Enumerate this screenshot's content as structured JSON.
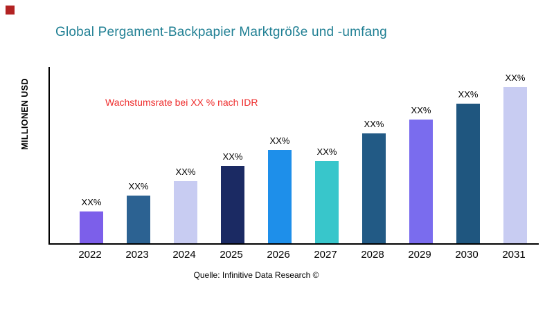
{
  "chart_data": {
    "type": "bar",
    "title": "Global Pergament-Backpapier Marktgröße und -umfang",
    "ylabel": "MILLIONEN USD",
    "xlabel": "",
    "annotation": "Wachstumsrate bei XX % nach IDR",
    "source": "Quelle: Infinitive Data Research ©",
    "categories": [
      "2022",
      "2023",
      "2024",
      "2025",
      "2026",
      "2027",
      "2028",
      "2029",
      "2030",
      "2031"
    ],
    "values": [
      47,
      71,
      92,
      115,
      139,
      122,
      163,
      184,
      208,
      232
    ],
    "value_labels": [
      "XX%",
      "XX%",
      "XX%",
      "XX%",
      "XX%",
      "XX%",
      "XX%",
      "XX%",
      "XX%",
      "XX%"
    ],
    "bar_colors": [
      "#7C5FEA",
      "#2C6292",
      "#C8CCF2",
      "#1B2A63",
      "#1E8FEA",
      "#38C6CB",
      "#225A85",
      "#7A6CEE",
      "#1F567F",
      "#C8CCF2"
    ],
    "ylim": [
      0,
      260
    ],
    "grid": false,
    "legend": false,
    "colors": {
      "title": "#1F7F93",
      "annotation": "#EE2B2B",
      "axis": "#000000",
      "corner_mark": "#B22222"
    }
  }
}
